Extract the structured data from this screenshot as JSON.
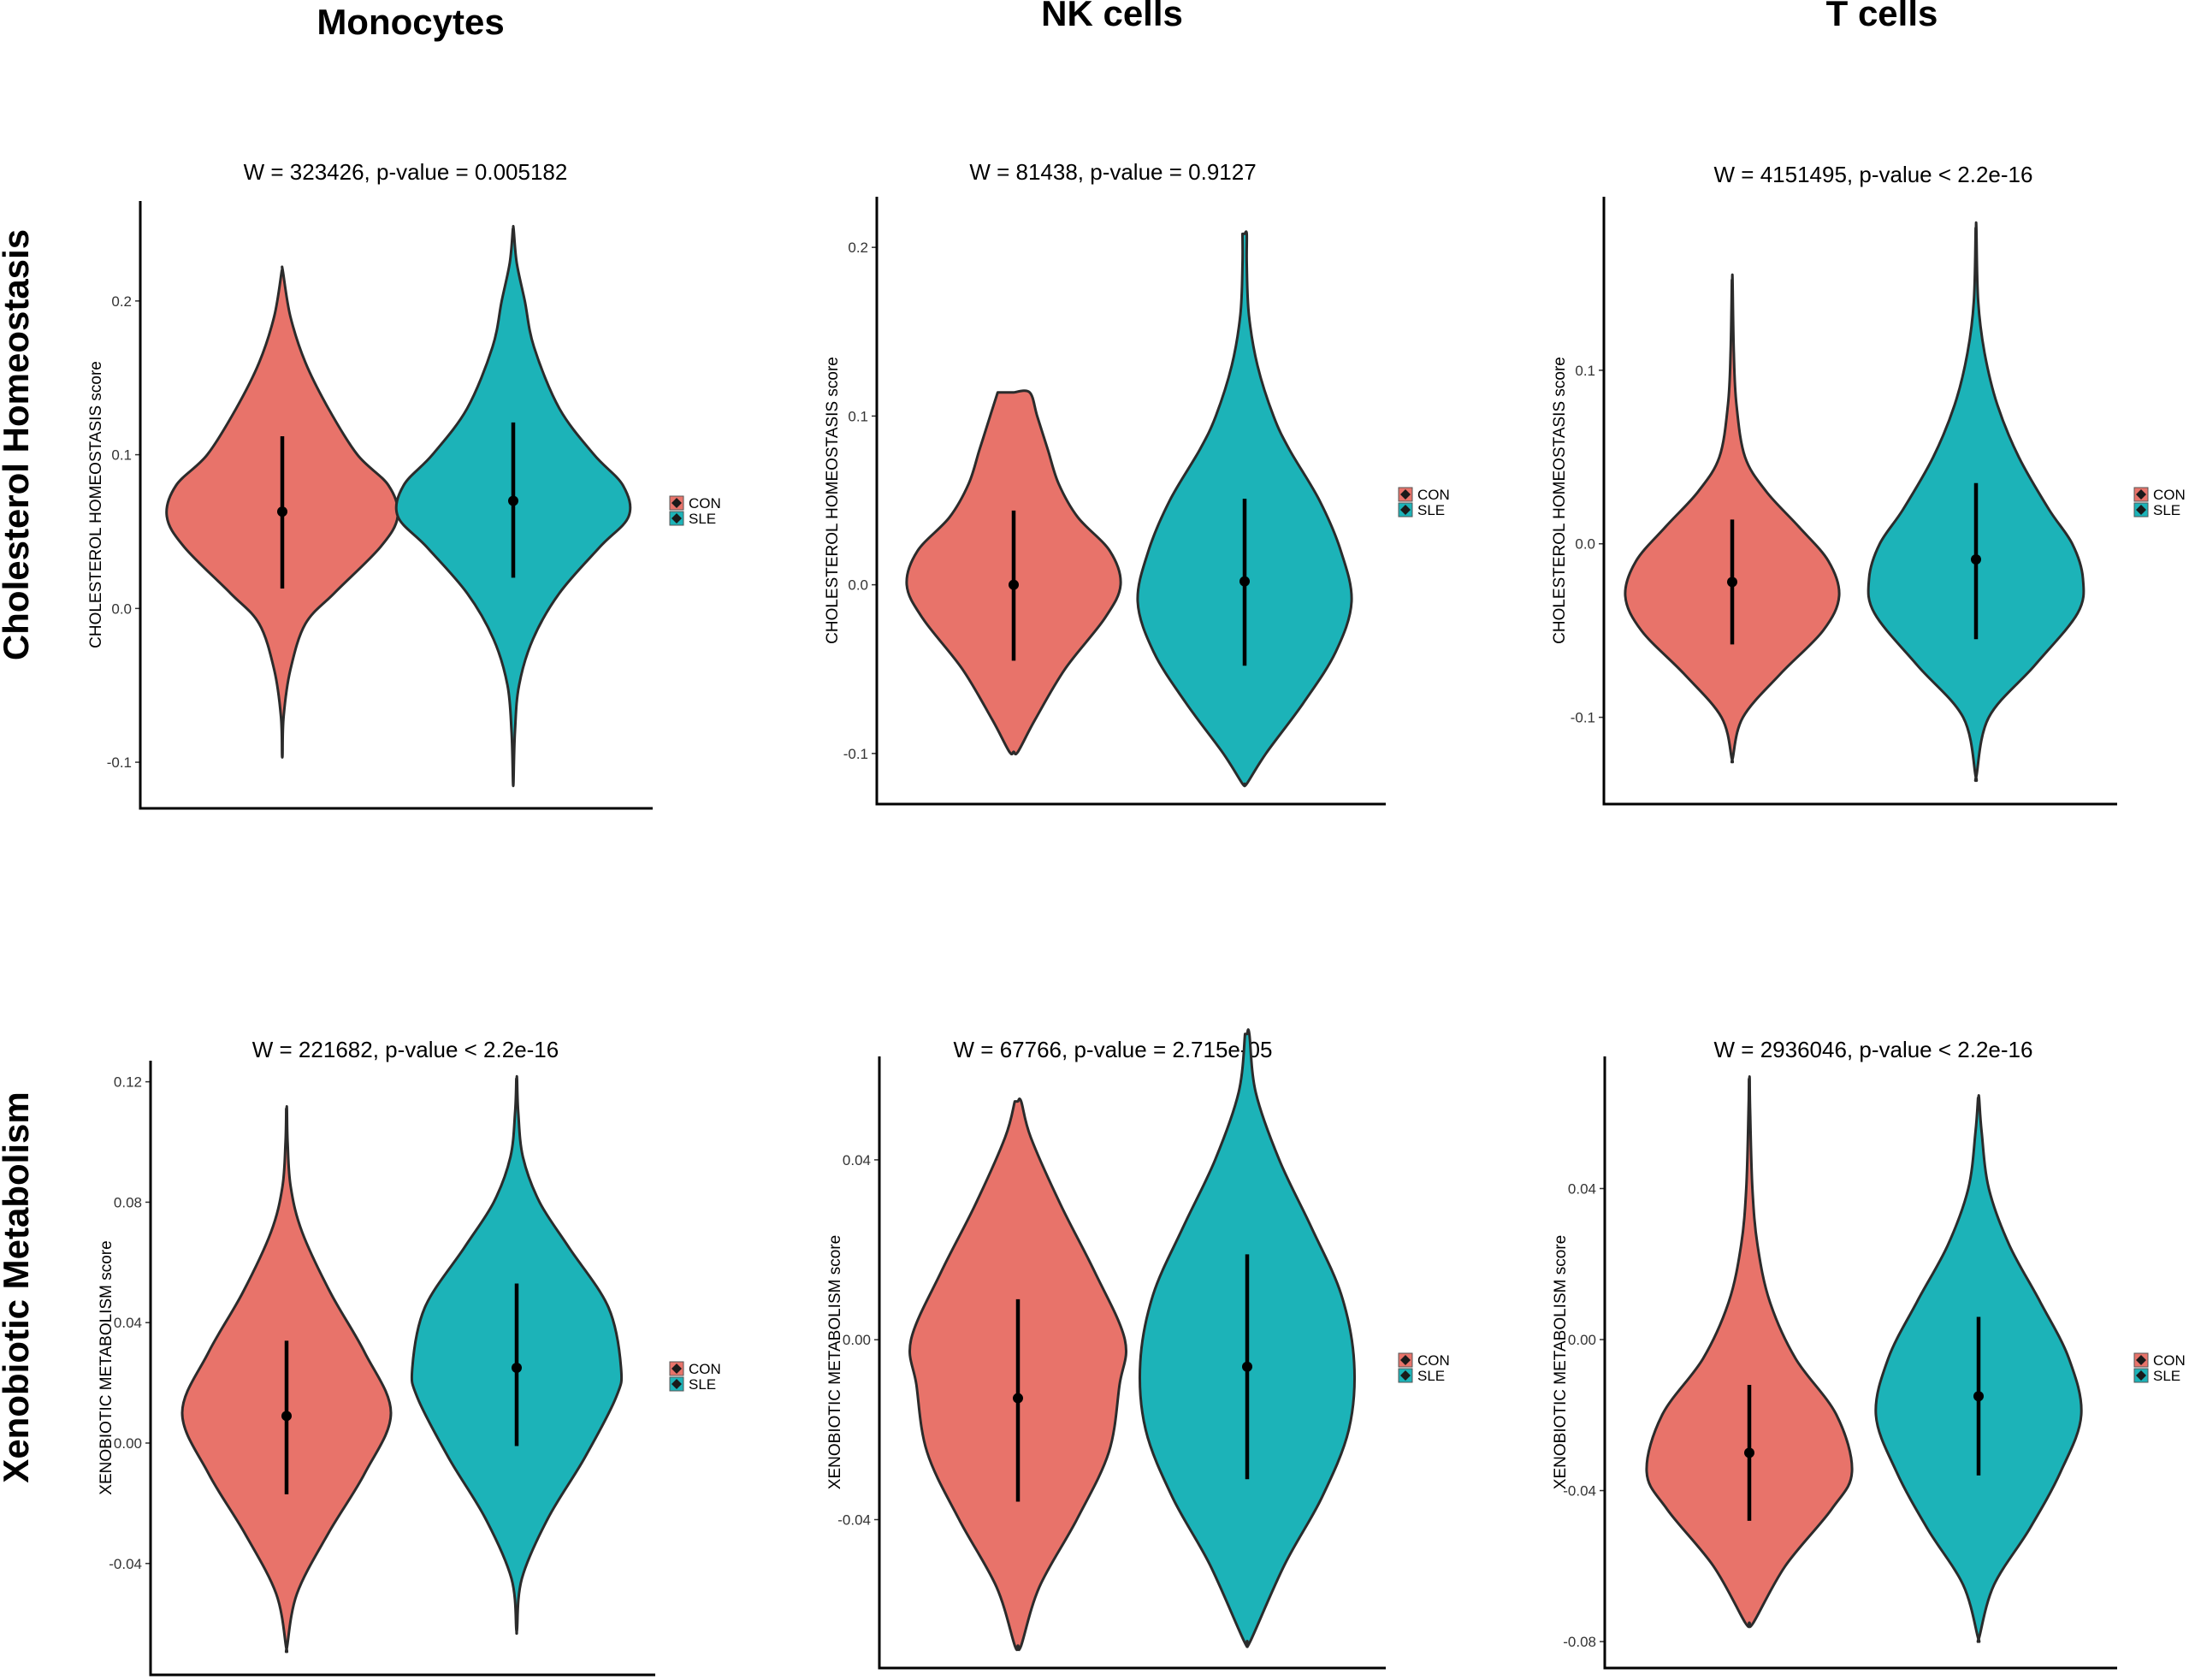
{
  "column_titles": [
    "Monocytes",
    "NK cells",
    "T cells"
  ],
  "row_titles": [
    "Cholesterol Homeostasis",
    "Xenobiotic Metabolism"
  ],
  "legend": {
    "items": [
      {
        "label": "CON",
        "color": "#E8736A"
      },
      {
        "label": "SLE",
        "color": "#1CB3B8"
      }
    ]
  },
  "chart_data": [
    {
      "type": "violin",
      "cell_type": "Monocytes",
      "pathway": "Cholesterol Homeostasis",
      "title": "W = 323426, p-value = 0.005182",
      "ylabel": "CHOLESTEROL HOMEOSTASIS score",
      "ylim": [
        -0.13,
        0.265
      ],
      "yticks": [
        -0.1,
        0.0,
        0.1,
        0.2
      ],
      "ytick_labels": [
        "-0.1",
        "0.0",
        "0.1",
        "0.2"
      ],
      "series": [
        {
          "name": "CON",
          "color": "#E8736A",
          "mean": 0.063,
          "lower": 0.013,
          "upper": 0.112,
          "min": -0.095,
          "max": 0.22,
          "profile": [
            [
              -0.095,
              0.002
            ],
            [
              -0.07,
              0.012
            ],
            [
              -0.04,
              0.07
            ],
            [
              -0.01,
              0.2
            ],
            [
              0.01,
              0.45
            ],
            [
              0.04,
              0.85
            ],
            [
              0.06,
              1.0
            ],
            [
              0.08,
              0.92
            ],
            [
              0.1,
              0.65
            ],
            [
              0.13,
              0.4
            ],
            [
              0.16,
              0.2
            ],
            [
              0.19,
              0.07
            ],
            [
              0.22,
              0.004
            ]
          ]
        },
        {
          "name": "SLE",
          "color": "#1CB3B8",
          "mean": 0.07,
          "lower": 0.02,
          "upper": 0.121,
          "min": -0.113,
          "max": 0.247,
          "profile": [
            [
              -0.113,
              0.002
            ],
            [
              -0.08,
              0.015
            ],
            [
              -0.05,
              0.05
            ],
            [
              -0.02,
              0.17
            ],
            [
              0.01,
              0.4
            ],
            [
              0.04,
              0.75
            ],
            [
              0.06,
              1.0
            ],
            [
              0.08,
              0.95
            ],
            [
              0.1,
              0.7
            ],
            [
              0.13,
              0.4
            ],
            [
              0.17,
              0.18
            ],
            [
              0.2,
              0.1
            ],
            [
              0.225,
              0.03
            ],
            [
              0.247,
              0.003
            ]
          ]
        }
      ]
    },
    {
      "type": "violin",
      "cell_type": "NK cells",
      "pathway": "Cholesterol Homeostasis",
      "title": "W = 81438, p-value = 0.9127",
      "ylabel": "CHOLESTEROL HOMEOSTASIS score",
      "ylim": [
        -0.13,
        0.23
      ],
      "yticks": [
        -0.1,
        0.0,
        0.1,
        0.2
      ],
      "ytick_labels": [
        "-0.1",
        "0.0",
        "0.1",
        "0.2"
      ],
      "series": [
        {
          "name": "CON",
          "color": "#E8736A",
          "mean": 0.0,
          "lower": -0.045,
          "upper": 0.044,
          "min": -0.099,
          "max": 0.114,
          "profile": [
            [
              -0.099,
              0.04
            ],
            [
              -0.08,
              0.2
            ],
            [
              -0.05,
              0.48
            ],
            [
              -0.02,
              0.85
            ],
            [
              0.0,
              1.0
            ],
            [
              0.02,
              0.9
            ],
            [
              0.04,
              0.6
            ],
            [
              0.06,
              0.42
            ],
            [
              0.08,
              0.32
            ],
            [
              0.1,
              0.22
            ],
            [
              0.114,
              0.15
            ]
          ]
        },
        {
          "name": "SLE",
          "color": "#1CB3B8",
          "mean": 0.002,
          "lower": -0.048,
          "upper": 0.051,
          "min": -0.118,
          "max": 0.208,
          "profile": [
            [
              -0.118,
              0.02
            ],
            [
              -0.1,
              0.2
            ],
            [
              -0.07,
              0.55
            ],
            [
              -0.04,
              0.85
            ],
            [
              -0.01,
              1.0
            ],
            [
              0.02,
              0.9
            ],
            [
              0.05,
              0.7
            ],
            [
              0.08,
              0.42
            ],
            [
              0.1,
              0.27
            ],
            [
              0.13,
              0.12
            ],
            [
              0.16,
              0.04
            ],
            [
              0.19,
              0.02
            ],
            [
              0.208,
              0.02
            ]
          ]
        }
      ]
    },
    {
      "type": "violin",
      "cell_type": "T cells",
      "pathway": "Cholesterol Homeostasis",
      "title": "W = 4151495, p-value < 2.2e-16",
      "ylabel": "CHOLESTEROL HOMEOSTASIS score",
      "ylim": [
        -0.15,
        0.2
      ],
      "yticks": [
        -0.1,
        0.0,
        0.1
      ],
      "ytick_labels": [
        "-0.1",
        "0.0",
        "0.1"
      ],
      "series": [
        {
          "name": "CON",
          "color": "#E8736A",
          "mean": -0.022,
          "lower": -0.058,
          "upper": 0.014,
          "min": -0.124,
          "max": 0.152,
          "profile": [
            [
              -0.124,
              0.003
            ],
            [
              -0.1,
              0.1
            ],
            [
              -0.075,
              0.45
            ],
            [
              -0.05,
              0.85
            ],
            [
              -0.03,
              1.0
            ],
            [
              -0.01,
              0.9
            ],
            [
              0.01,
              0.62
            ],
            [
              0.03,
              0.32
            ],
            [
              0.05,
              0.12
            ],
            [
              0.08,
              0.04
            ],
            [
              0.11,
              0.015
            ],
            [
              0.152,
              0.003
            ]
          ]
        },
        {
          "name": "SLE",
          "color": "#1CB3B8",
          "mean": -0.009,
          "lower": -0.055,
          "upper": 0.035,
          "min": -0.134,
          "max": 0.182,
          "profile": [
            [
              -0.134,
              0.003
            ],
            [
              -0.1,
              0.12
            ],
            [
              -0.07,
              0.55
            ],
            [
              -0.04,
              0.95
            ],
            [
              -0.02,
              1.0
            ],
            [
              0.0,
              0.9
            ],
            [
              0.02,
              0.68
            ],
            [
              0.05,
              0.4
            ],
            [
              0.08,
              0.2
            ],
            [
              0.11,
              0.08
            ],
            [
              0.14,
              0.02
            ],
            [
              0.182,
              0.003
            ]
          ]
        }
      ]
    },
    {
      "type": "violin",
      "cell_type": "Monocytes",
      "pathway": "Xenobiotic Metabolism",
      "title": "W = 221682, p-value < 2.2e-16",
      "ylabel": "XENOBIOTIC METABOLISM score",
      "ylim": [
        -0.077,
        0.127
      ],
      "yticks": [
        -0.04,
        0.0,
        0.04,
        0.08,
        0.12
      ],
      "ytick_labels": [
        "-0.04",
        "0.00",
        "0.04",
        "0.08",
        "0.12"
      ],
      "series": [
        {
          "name": "CON",
          "color": "#E8736A",
          "mean": 0.009,
          "lower": -0.017,
          "upper": 0.034,
          "min": -0.068,
          "max": 0.111,
          "profile": [
            [
              -0.068,
              0.003
            ],
            [
              -0.05,
              0.1
            ],
            [
              -0.03,
              0.4
            ],
            [
              -0.01,
              0.75
            ],
            [
              0.01,
              1.0
            ],
            [
              0.03,
              0.75
            ],
            [
              0.05,
              0.42
            ],
            [
              0.07,
              0.15
            ],
            [
              0.085,
              0.04
            ],
            [
              0.1,
              0.01
            ],
            [
              0.111,
              0.003
            ]
          ]
        },
        {
          "name": "SLE",
          "color": "#1CB3B8",
          "mean": 0.025,
          "lower": -0.001,
          "upper": 0.053,
          "min": -0.062,
          "max": 0.121,
          "profile": [
            [
              -0.062,
              0.003
            ],
            [
              -0.045,
              0.05
            ],
            [
              -0.025,
              0.3
            ],
            [
              -0.005,
              0.65
            ],
            [
              0.015,
              0.95
            ],
            [
              0.025,
              1.0
            ],
            [
              0.045,
              0.88
            ],
            [
              0.065,
              0.5
            ],
            [
              0.08,
              0.22
            ],
            [
              0.095,
              0.06
            ],
            [
              0.11,
              0.015
            ],
            [
              0.121,
              0.003
            ]
          ]
        }
      ]
    },
    {
      "type": "violin",
      "cell_type": "NK cells",
      "pathway": "Xenobiotic Metabolism",
      "title": "W = 67766, p-value = 2.715e-05",
      "ylabel": "XENOBIOTIC METABOLISM score",
      "ylim": [
        -0.073,
        0.063
      ],
      "yticks": [
        -0.04,
        0.0,
        0.04
      ],
      "ytick_labels": [
        "-0.04",
        "0.00",
        "0.04"
      ],
      "series": [
        {
          "name": "CON",
          "color": "#E8736A",
          "mean": -0.013,
          "lower": -0.036,
          "upper": 0.009,
          "min": -0.068,
          "max": 0.053,
          "profile": [
            [
              -0.068,
              0.03
            ],
            [
              -0.055,
              0.2
            ],
            [
              -0.04,
              0.55
            ],
            [
              -0.025,
              0.85
            ],
            [
              -0.01,
              0.95
            ],
            [
              0.0,
              1.0
            ],
            [
              0.015,
              0.72
            ],
            [
              0.03,
              0.4
            ],
            [
              0.045,
              0.12
            ],
            [
              0.053,
              0.03
            ]
          ]
        },
        {
          "name": "SLE",
          "color": "#1CB3B8",
          "mean": -0.006,
          "lower": -0.031,
          "upper": 0.019,
          "min": -0.067,
          "max": 0.068,
          "profile": [
            [
              -0.067,
              0.03
            ],
            [
              -0.05,
              0.35
            ],
            [
              -0.035,
              0.7
            ],
            [
              -0.02,
              0.95
            ],
            [
              -0.005,
              1.0
            ],
            [
              0.01,
              0.88
            ],
            [
              0.025,
              0.6
            ],
            [
              0.04,
              0.3
            ],
            [
              0.055,
              0.08
            ],
            [
              0.068,
              0.02
            ]
          ]
        }
      ]
    },
    {
      "type": "violin",
      "cell_type": "T cells",
      "pathway": "Xenobiotic Metabolism",
      "title": "W = 2936046, p-value < 2.2e-16",
      "ylabel": "XENOBIOTIC METABOLISM score",
      "ylim": [
        -0.087,
        0.075
      ],
      "yticks": [
        -0.08,
        -0.04,
        0.0,
        0.04
      ],
      "ytick_labels": [
        "-0.08",
        "-0.04",
        "0.00",
        "0.04"
      ],
      "series": [
        {
          "name": "CON",
          "color": "#E8736A",
          "mean": -0.03,
          "lower": -0.048,
          "upper": -0.012,
          "min": -0.075,
          "max": 0.069,
          "profile": [
            [
              -0.075,
              0.04
            ],
            [
              -0.06,
              0.35
            ],
            [
              -0.045,
              0.8
            ],
            [
              -0.035,
              1.0
            ],
            [
              -0.02,
              0.85
            ],
            [
              -0.005,
              0.45
            ],
            [
              0.01,
              0.2
            ],
            [
              0.025,
              0.08
            ],
            [
              0.04,
              0.03
            ],
            [
              0.06,
              0.008
            ],
            [
              0.069,
              0.003
            ]
          ]
        },
        {
          "name": "SLE",
          "color": "#1CB3B8",
          "mean": -0.015,
          "lower": -0.036,
          "upper": 0.006,
          "min": -0.079,
          "max": 0.064,
          "profile": [
            [
              -0.079,
              0.005
            ],
            [
              -0.065,
              0.15
            ],
            [
              -0.05,
              0.5
            ],
            [
              -0.035,
              0.8
            ],
            [
              -0.02,
              1.0
            ],
            [
              -0.005,
              0.88
            ],
            [
              0.01,
              0.6
            ],
            [
              0.025,
              0.3
            ],
            [
              0.04,
              0.1
            ],
            [
              0.055,
              0.03
            ],
            [
              0.064,
              0.005
            ]
          ]
        }
      ]
    }
  ]
}
